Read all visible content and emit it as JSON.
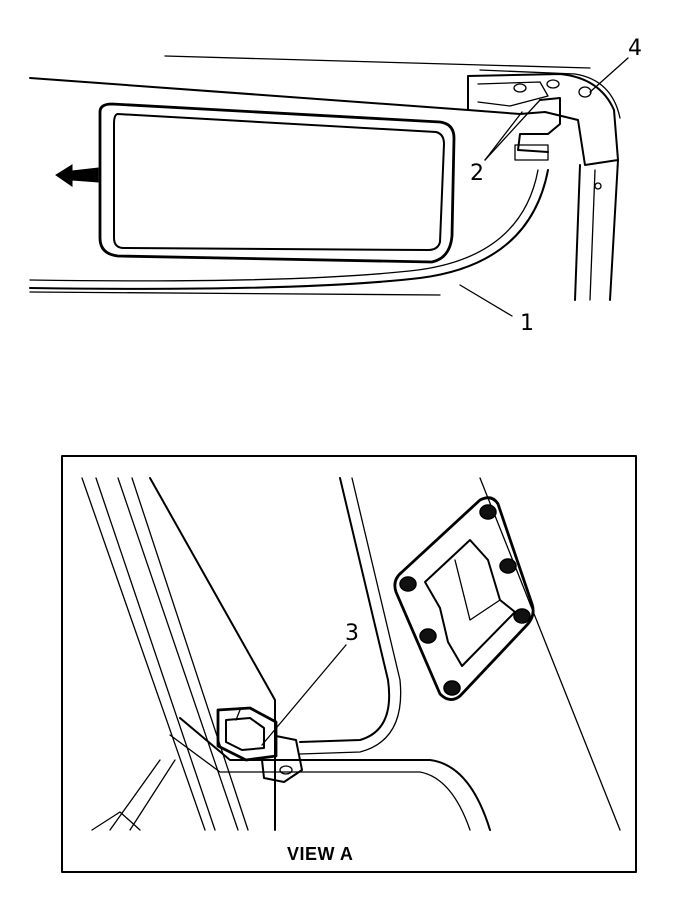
{
  "callouts": {
    "c1": "1",
    "c2": "2",
    "c3": "3",
    "c4": "4"
  },
  "view_label": "VIEW A",
  "icons": {
    "direction_arrow": "arrow-left-icon"
  }
}
